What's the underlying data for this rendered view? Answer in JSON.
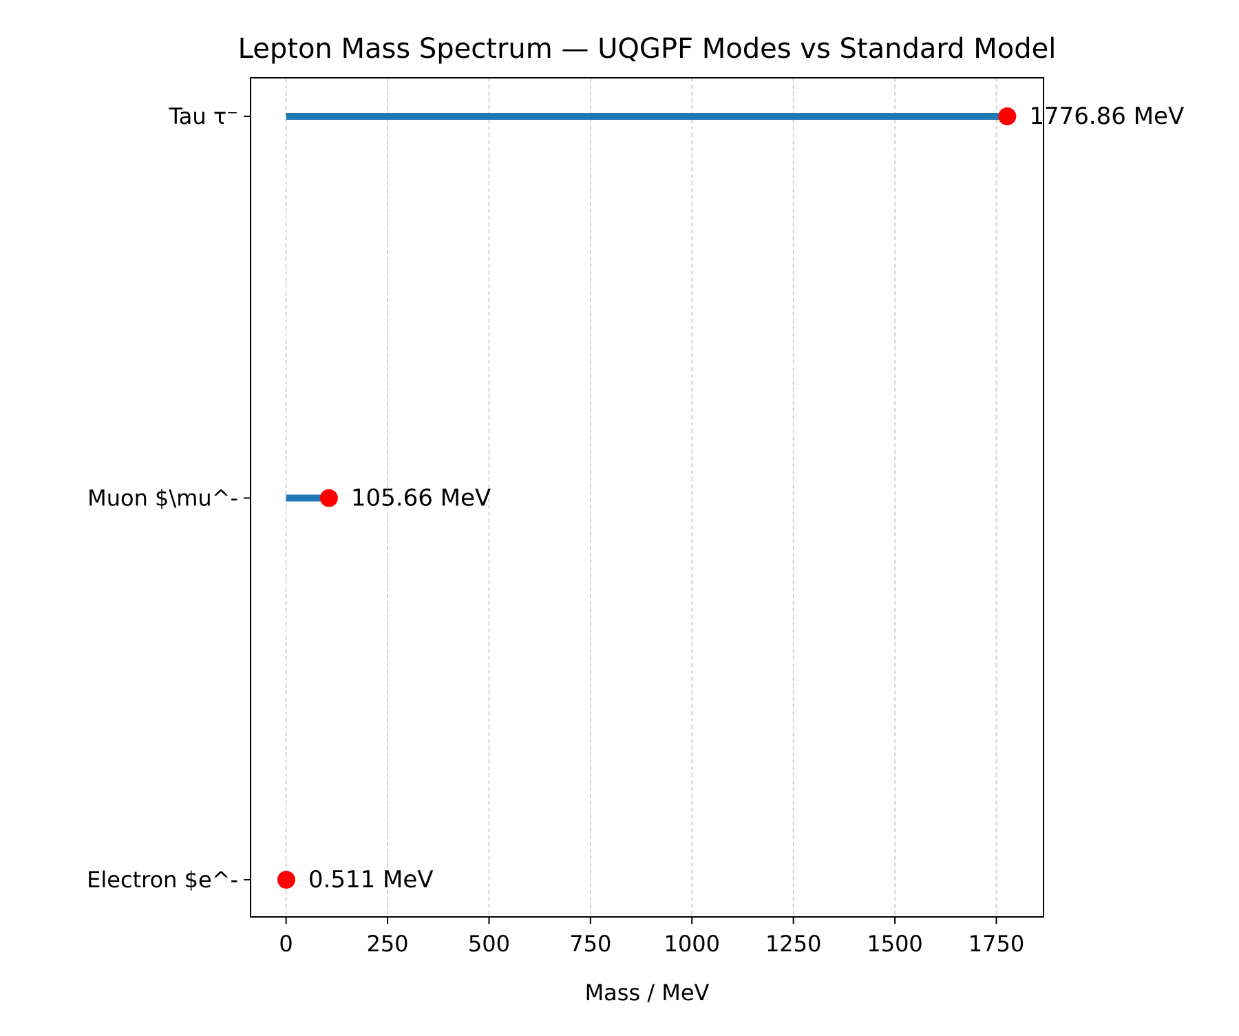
{
  "chart_data": {
    "type": "lollipop",
    "title": "Lepton Mass Spectrum — UQGPF Modes vs Standard Model",
    "xlabel": "Mass / MeV",
    "ylabel": "",
    "xlim": [
      -87.5,
      1866.2
    ],
    "xticks": [
      0,
      250,
      500,
      750,
      1000,
      1250,
      1500,
      1750
    ],
    "xtick_labels": [
      "0",
      "250",
      "500",
      "750",
      "1000",
      "1250",
      "1500",
      "1750"
    ],
    "grid": {
      "x": true,
      "y": false,
      "style": "dashed"
    },
    "categories": [
      "Electron $e^-",
      "Muon $\\mu^-",
      "Tau τ⁻"
    ],
    "values": [
      0.511,
      105.66,
      1776.86
    ],
    "value_labels": [
      "0.511 MeV",
      "105.66 MeV",
      "1776.86 MeV"
    ],
    "colors": {
      "stem": "#1f77b4",
      "marker": "#ff0000",
      "grid": "#cccccc",
      "axes": "#000000"
    }
  }
}
